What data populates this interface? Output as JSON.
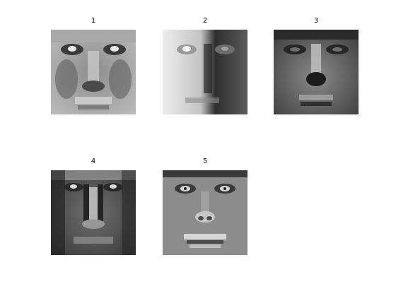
{
  "figure": {
    "panels": [
      {
        "title": "1"
      },
      {
        "title": "2"
      },
      {
        "title": "3"
      },
      {
        "title": "4"
      },
      {
        "title": "5"
      }
    ]
  }
}
